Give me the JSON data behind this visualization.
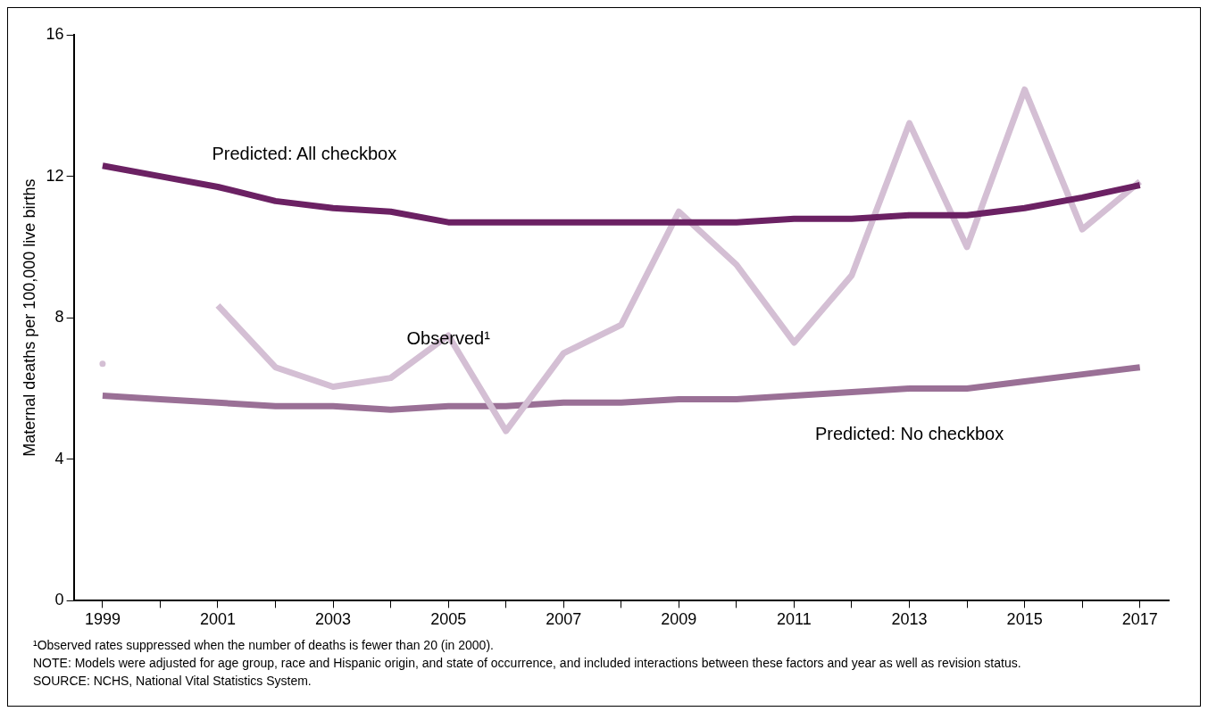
{
  "chart_data": {
    "type": "line",
    "ylabel": "Maternal deaths per 100,000 live births",
    "x": [
      1999,
      2000,
      2001,
      2002,
      2003,
      2004,
      2005,
      2006,
      2007,
      2008,
      2009,
      2010,
      2011,
      2012,
      2013,
      2014,
      2015,
      2016,
      2017
    ],
    "xlim": [
      1998.5,
      2017.5
    ],
    "xticks": [
      1999,
      {
        "value": 2000,
        "label": null
      },
      2001,
      {
        "value": 2002,
        "label": null
      },
      2003,
      {
        "value": 2004,
        "label": null
      },
      2005,
      {
        "value": 2006,
        "label": null
      },
      2007,
      {
        "value": 2008,
        "label": null
      },
      2009,
      {
        "value": 2010,
        "label": null
      },
      2011,
      {
        "value": 2012,
        "label": null
      },
      2013,
      {
        "value": 2014,
        "label": null
      },
      2015,
      {
        "value": 2016,
        "label": null
      },
      2017
    ],
    "ylim": [
      0,
      16
    ],
    "yticks": [
      0,
      4,
      8,
      12,
      16
    ],
    "grid": false,
    "legend": false,
    "marker": "none",
    "line_style": "solid",
    "series": [
      {
        "name": "Predicted: All checkbox",
        "color": "#6b2163",
        "values": [
          12.3,
          12.0,
          11.7,
          11.3,
          11.1,
          11.0,
          10.7,
          10.7,
          10.7,
          10.7,
          10.7,
          10.7,
          10.8,
          10.8,
          10.9,
          10.9,
          11.1,
          11.4,
          11.75
        ]
      },
      {
        "name": "Observed¹",
        "color": "#d4bfd4",
        "values": [
          6.7,
          null,
          8.35,
          6.6,
          6.05,
          6.3,
          7.5,
          4.8,
          7.0,
          7.8,
          11.0,
          9.5,
          7.3,
          9.2,
          13.5,
          10.0,
          14.45,
          10.5,
          11.85
        ]
      },
      {
        "name": "Predicted: No checkbox",
        "color": "#9a7096",
        "values": [
          5.8,
          5.7,
          5.6,
          5.5,
          5.5,
          5.4,
          5.5,
          5.5,
          5.6,
          5.6,
          5.7,
          5.7,
          5.8,
          5.9,
          6.0,
          6.0,
          6.2,
          6.4,
          6.6
        ]
      }
    ],
    "annotations": [
      "¹Observed rates suppressed when the number of deaths is fewer than 20 (in 2000).",
      "NOTE: Models were adjusted for age group, race and Hispanic origin, and state of occurrence, and included interactions between these factors and year as well as revision status.",
      "SOURCE: NCHS, National Vital Statistics System."
    ]
  }
}
